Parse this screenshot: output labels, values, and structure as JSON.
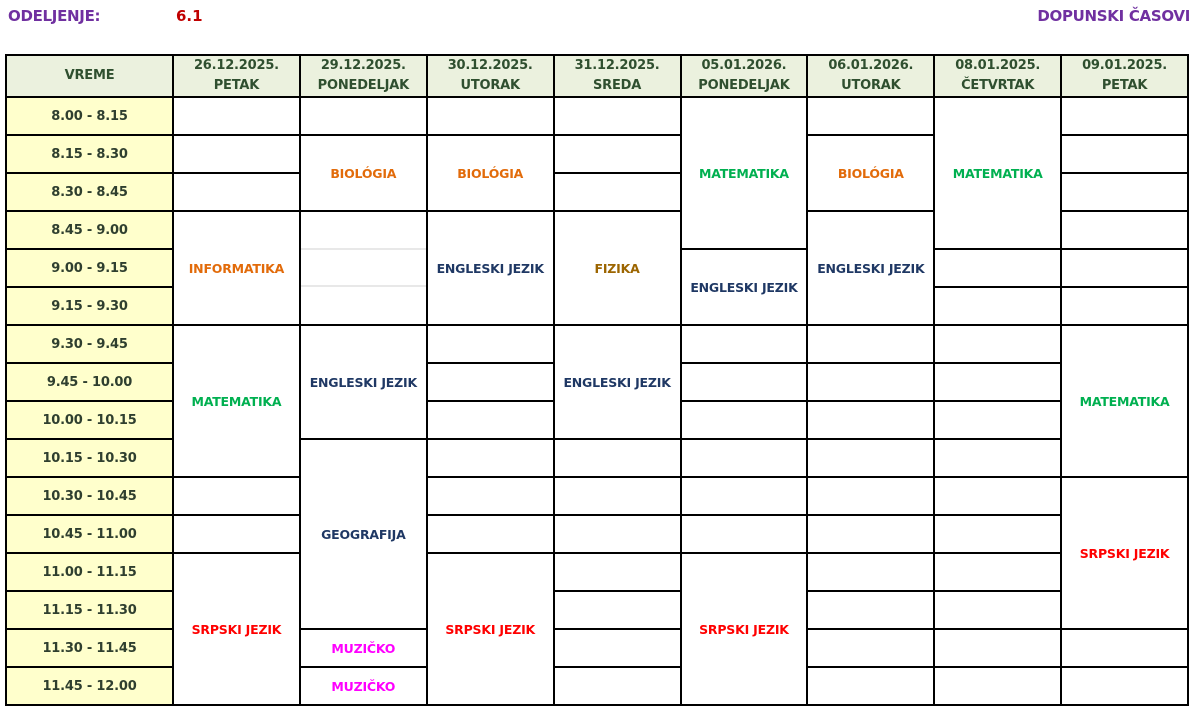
{
  "header": {
    "class_label": "ODELJENJE:",
    "class_value": "6.1",
    "title": "DOPUNSKI ČASOVI"
  },
  "colors": {
    "BIOLÓGIA": "#E26B0A",
    "INFORMATIKA": "#E26B0A",
    "MATEMATIKA": "#00B050",
    "ENGLESKI JEZIK": "#1F3864",
    "FIZIKA": "#9C6500",
    "SRPSKI JEZIK": "#FF0000",
    "GEOGRAFIJA": "#1F3864",
    "MUZIČKO": "#FF00FF"
  },
  "time_header": "VREME",
  "times": [
    "8.00 - 8.15",
    "8.15 - 8.30",
    "8.30 - 8.45",
    "8.45 - 9.00",
    "9.00 - 9.15",
    "9.15 - 9.30",
    "9.30 - 9.45",
    "9.45 - 10.00",
    "10.00 - 10.15",
    "10.15 - 10.30",
    "10.30 - 10.45",
    "10.45 - 11.00",
    "11.00 - 11.15",
    "11.15 - 11.30",
    "11.30 - 11.45",
    "11.45 - 12.00"
  ],
  "days": [
    {
      "date": "26.12.2025.",
      "day": "PETAK",
      "cells": [
        {
          "t": "",
          "s": 1
        },
        {
          "t": "",
          "s": 1
        },
        {
          "t": "",
          "s": 1
        },
        {
          "t": "INFORMATIKA",
          "s": 3
        },
        {
          "t": "MATEMATIKA",
          "s": 4
        },
        {
          "t": "",
          "s": 1
        },
        {
          "t": "",
          "s": 1
        },
        {
          "t": "SRPSKI JEZIK",
          "s": 4
        }
      ]
    },
    {
      "date": "29.12.2025.",
      "day": "PONEDELJAK",
      "cells": [
        {
          "t": "",
          "s": 1
        },
        {
          "t": "BIOLÓGIA",
          "s": 2
        },
        {
          "t": "",
          "s": 3,
          "subdivided": true
        },
        {
          "t": "ENGLESKI JEZIK",
          "s": 3
        },
        {
          "t": "GEOGRAFIJA",
          "s": 5
        },
        {
          "t": "MUZIČKO",
          "s": 1
        },
        {
          "t": "MUZIČKO",
          "s": 1
        }
      ]
    },
    {
      "date": "30.12.2025.",
      "day": "UTORAK",
      "cells": [
        {
          "t": "",
          "s": 1
        },
        {
          "t": "BIOLÓGIA",
          "s": 2
        },
        {
          "t": "ENGLESKI JEZIK",
          "s": 3
        },
        {
          "t": "",
          "s": 1
        },
        {
          "t": "",
          "s": 1
        },
        {
          "t": "",
          "s": 1
        },
        {
          "t": "",
          "s": 1
        },
        {
          "t": "",
          "s": 1
        },
        {
          "t": "",
          "s": 1
        },
        {
          "t": "SRPSKI JEZIK",
          "s": 4
        }
      ]
    },
    {
      "date": "31.12.2025.",
      "day": "SREDA",
      "cells": [
        {
          "t": "",
          "s": 1
        },
        {
          "t": "",
          "s": 1
        },
        {
          "t": "",
          "s": 1
        },
        {
          "t": "FIZIKA",
          "s": 3
        },
        {
          "t": "ENGLESKI JEZIK",
          "s": 3
        },
        {
          "t": "",
          "s": 1
        },
        {
          "t": "",
          "s": 1
        },
        {
          "t": "",
          "s": 1
        },
        {
          "t": "",
          "s": 1
        },
        {
          "t": "",
          "s": 1
        },
        {
          "t": "",
          "s": 1
        },
        {
          "t": "",
          "s": 1
        }
      ]
    },
    {
      "date": "05.01.2026.",
      "day": "PONEDELJAK",
      "cells": [
        {
          "t": "MATEMATIKA",
          "s": 4
        },
        {
          "t": "ENGLESKI JEZIK",
          "s": 2
        },
        {
          "t": "",
          "s": 1
        },
        {
          "t": "",
          "s": 1
        },
        {
          "t": "",
          "s": 1
        },
        {
          "t": "",
          "s": 1
        },
        {
          "t": "",
          "s": 1
        },
        {
          "t": "",
          "s": 1
        },
        {
          "t": "SRPSKI JEZIK",
          "s": 4
        }
      ]
    },
    {
      "date": "06.01.2026.",
      "day": "UTORAK",
      "cells": [
        {
          "t": "",
          "s": 1
        },
        {
          "t": "BIOLÓGIA",
          "s": 2
        },
        {
          "t": "ENGLESKI JEZIK",
          "s": 3
        },
        {
          "t": "",
          "s": 1
        },
        {
          "t": "",
          "s": 1
        },
        {
          "t": "",
          "s": 1
        },
        {
          "t": "",
          "s": 1
        },
        {
          "t": "",
          "s": 1
        },
        {
          "t": "",
          "s": 1
        },
        {
          "t": "",
          "s": 1
        },
        {
          "t": "",
          "s": 1
        },
        {
          "t": "",
          "s": 1
        },
        {
          "t": "",
          "s": 1
        }
      ]
    },
    {
      "date": "08.01.2025.",
      "day": "ČETVRTAK",
      "cells": [
        {
          "t": "MATEMATIKA",
          "s": 4
        },
        {
          "t": "",
          "s": 1
        },
        {
          "t": "",
          "s": 1
        },
        {
          "t": "",
          "s": 1
        },
        {
          "t": "",
          "s": 1
        },
        {
          "t": "",
          "s": 1
        },
        {
          "t": "",
          "s": 1
        },
        {
          "t": "",
          "s": 1
        },
        {
          "t": "",
          "s": 1
        },
        {
          "t": "",
          "s": 1
        },
        {
          "t": "",
          "s": 1
        },
        {
          "t": "",
          "s": 1
        },
        {
          "t": "",
          "s": 1
        }
      ]
    },
    {
      "date": "09.01.2025.",
      "day": "PETAK",
      "cells": [
        {
          "t": "",
          "s": 1
        },
        {
          "t": "",
          "s": 1
        },
        {
          "t": "",
          "s": 1
        },
        {
          "t": "",
          "s": 1
        },
        {
          "t": "",
          "s": 1
        },
        {
          "t": "",
          "s": 1
        },
        {
          "t": "MATEMATIKA",
          "s": 4
        },
        {
          "t": "SRPSKI JEZIK",
          "s": 4
        },
        {
          "t": "",
          "s": 1
        },
        {
          "t": "",
          "s": 1
        }
      ]
    }
  ]
}
